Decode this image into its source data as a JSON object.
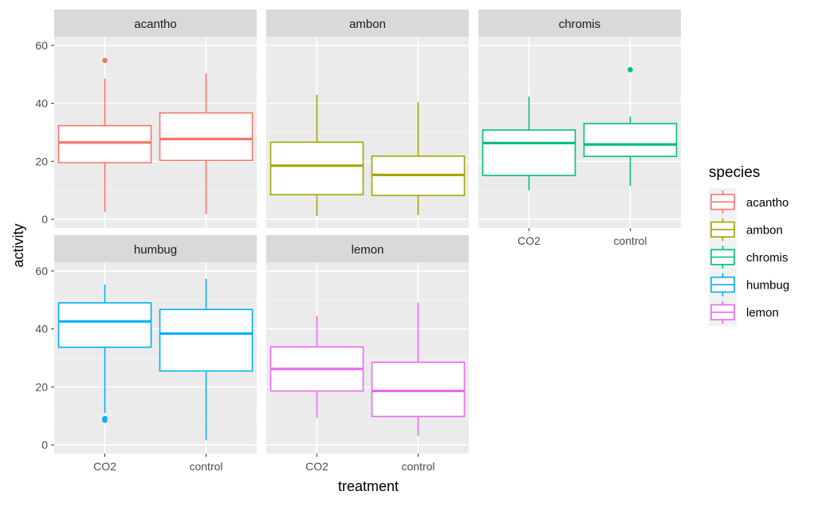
{
  "chart_data": {
    "type": "boxplot",
    "xlabel": "treatment",
    "ylabel": "activity",
    "ylim": [
      -3,
      63
    ],
    "y_ticks": [
      "0",
      "20",
      "40",
      "60"
    ],
    "categories": [
      "CO2",
      "control"
    ],
    "grid": true,
    "legend": {
      "title": "species",
      "position": "right",
      "items": [
        {
          "label": "acantho",
          "color": "#F8766D"
        },
        {
          "label": "ambon",
          "color": "#A3A500"
        },
        {
          "label": "chromis",
          "color": "#00BF7D"
        },
        {
          "label": "humbug",
          "color": "#00B0F6"
        },
        {
          "label": "lemon",
          "color": "#E76BF3"
        }
      ]
    },
    "panels": [
      {
        "name": "acantho",
        "color": "#F8766D",
        "boxes": [
          {
            "x": "CO2",
            "min": 2.5,
            "q1": 19.5,
            "median": 26.5,
            "q3": 32.3,
            "max": 48.5,
            "outliers": [
              54.8
            ]
          },
          {
            "x": "control",
            "min": 1.8,
            "q1": 20.3,
            "median": 27.7,
            "q3": 36.7,
            "max": 50.4,
            "outliers": []
          }
        ]
      },
      {
        "name": "ambon",
        "color": "#A3A500",
        "boxes": [
          {
            "x": "CO2",
            "min": 1.2,
            "q1": 8.5,
            "median": 18.5,
            "q3": 26.6,
            "max": 42.9,
            "outliers": []
          },
          {
            "x": "control",
            "min": 1.5,
            "q1": 8.2,
            "median": 15.3,
            "q3": 21.8,
            "max": 40.5,
            "outliers": []
          }
        ]
      },
      {
        "name": "chromis",
        "color": "#00BF7D",
        "boxes": [
          {
            "x": "CO2",
            "min": 10.0,
            "q1": 15.1,
            "median": 26.3,
            "q3": 30.8,
            "max": 42.3,
            "outliers": []
          },
          {
            "x": "control",
            "min": 11.5,
            "q1": 21.7,
            "median": 25.8,
            "q3": 33.0,
            "max": 35.5,
            "outliers": [
              51.6
            ]
          }
        ]
      },
      {
        "name": "humbug",
        "color": "#00B0F6",
        "boxes": [
          {
            "x": "CO2",
            "min": 11.0,
            "q1": 33.7,
            "median": 42.6,
            "q3": 49.0,
            "max": 55.3,
            "outliers": [
              8.5,
              9.1
            ]
          },
          {
            "x": "control",
            "min": 1.6,
            "q1": 25.5,
            "median": 38.4,
            "q3": 46.7,
            "max": 57.3,
            "outliers": []
          }
        ]
      },
      {
        "name": "lemon",
        "color": "#E76BF3",
        "boxes": [
          {
            "x": "CO2",
            "min": 9.3,
            "q1": 18.6,
            "median": 26.2,
            "q3": 33.8,
            "max": 44.5,
            "outliers": []
          },
          {
            "x": "control",
            "min": 3.2,
            "q1": 9.8,
            "median": 18.6,
            "q3": 28.5,
            "max": 49.1,
            "outliers": []
          }
        ]
      }
    ]
  }
}
